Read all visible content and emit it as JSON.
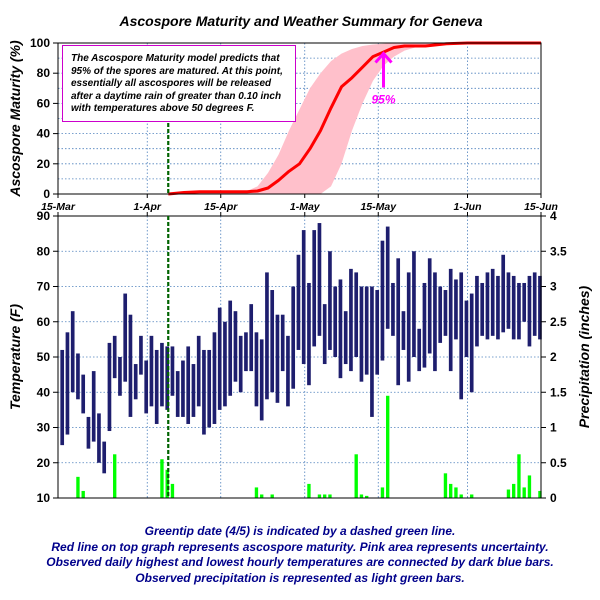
{
  "title": "Ascospore Maturity and Weather Summary for Geneva",
  "colors": {
    "maturity_line": "#ff0000",
    "uncertainty_band": "#ffc0cb",
    "temperature_bars": "#1e1e6e",
    "precipitation_bars": "#00ff00",
    "greentip_line": "#006400",
    "grid": "#4f81bd",
    "annotation": "#ff00ff",
    "caption_text": "#00008b"
  },
  "note_text": "The Ascospore Maturity model predicts that 95% of the spores are matured. At this point, essentially all ascospores will be released after a daytime rain of greater than 0.10 inch with temperatures above 50 degrees F.",
  "captions": [
    "Greentip date (4/5) is indicated by a dashed green line.",
    "Red line on top graph represents ascospore maturity. Pink area represents uncertainty.",
    "Observed daily highest and lowest hourly temperatures are connected by dark blue bars.",
    "Observed precipitation is represented as light green bars."
  ],
  "chart_data": [
    {
      "type": "line",
      "ylabel": "Ascospore Maturity (%)",
      "ylim": [
        0,
        100
      ],
      "yticks": [
        0,
        20,
        40,
        60,
        80,
        100
      ],
      "x_range_days": [
        0,
        92
      ],
      "x_tick_labels": [
        "15-Mar",
        "1-Apr",
        "15-Apr",
        "1-May",
        "15-May",
        "1-Jun",
        "15-Jun"
      ],
      "x_tick_days": [
        0,
        17,
        31,
        47,
        61,
        78,
        92
      ],
      "grid": true,
      "greentip_day": 21,
      "greentip_label": "4/5",
      "annotation": {
        "text": "95%",
        "day": 62,
        "value": 95
      },
      "series": [
        {
          "x_days": [
            21,
            24,
            27,
            30,
            33,
            36,
            38,
            40,
            42,
            44,
            46,
            48,
            50,
            52,
            54,
            56,
            58,
            60,
            62,
            64,
            66,
            70,
            74,
            78,
            92
          ],
          "values": [
            0,
            1,
            1.5,
            1.5,
            1.5,
            1.5,
            2,
            4,
            9,
            15,
            20,
            30,
            42,
            57,
            71,
            77,
            84,
            91,
            94,
            97,
            98,
            98,
            99.5,
            100,
            100
          ]
        }
      ],
      "uncertainty_band": {
        "x_days": [
          21,
          36,
          38,
          40,
          42,
          44,
          46,
          48,
          50,
          52,
          54,
          56,
          58,
          60,
          62,
          64,
          66,
          68,
          70,
          74,
          78,
          92
        ],
        "upper": [
          0,
          2,
          5,
          14,
          26,
          42,
          56,
          70,
          80,
          88,
          93,
          96,
          98,
          99,
          99.5,
          100,
          100,
          100,
          100,
          100,
          100,
          100
        ],
        "lower": [
          0,
          0,
          0,
          0,
          0,
          0,
          0,
          0,
          0,
          5,
          20,
          42,
          60,
          75,
          85,
          91,
          95,
          97,
          98,
          99.5,
          100,
          100
        ]
      }
    },
    {
      "type": "bar",
      "ylabel": "Temperature (F)",
      "ylim": [
        10,
        90
      ],
      "yticks": [
        10,
        20,
        30,
        40,
        50,
        60,
        70,
        80,
        90
      ],
      "y2label": "Precipitation (inches)",
      "y2lim": [
        0,
        4
      ],
      "y2ticks": [
        "0",
        "0.5",
        "1",
        "1.5",
        "2",
        "2.5",
        "3",
        "3.5",
        "4"
      ],
      "x_range_days": [
        0,
        92
      ],
      "first_bar_day": 0.8,
      "grid": true,
      "greentip_day": 21,
      "temperature_low": [
        25,
        28,
        40,
        38,
        34,
        24,
        26,
        20,
        17,
        29,
        44,
        39,
        43,
        33,
        38,
        45,
        34,
        36,
        31,
        36,
        35,
        39,
        33,
        33,
        31,
        33,
        36,
        28,
        30,
        31,
        35,
        36,
        39,
        43,
        40,
        46,
        46,
        36,
        32,
        38,
        40,
        37,
        46,
        36,
        41,
        52,
        48,
        42,
        53,
        56,
        48,
        52,
        50,
        44,
        48,
        46,
        50,
        43,
        45,
        33,
        45,
        49,
        58,
        56,
        42,
        52,
        43,
        50,
        46,
        47,
        51,
        46,
        54,
        56,
        46,
        55,
        38,
        50,
        40,
        53,
        56,
        55,
        56,
        55,
        57,
        58,
        55,
        55,
        60,
        53,
        56,
        55
      ],
      "temperature_high": [
        52,
        57,
        63,
        51,
        45,
        33,
        46,
        34,
        26,
        54,
        56,
        50,
        68,
        62,
        48,
        56,
        49,
        56,
        52,
        54,
        53,
        53,
        46,
        49,
        53,
        48,
        56,
        52,
        52,
        57,
        64,
        60,
        66,
        63,
        56,
        57,
        65,
        57,
        55,
        74,
        69,
        62,
        62,
        56,
        70,
        79,
        86,
        71,
        86,
        88,
        65,
        80,
        70,
        72,
        63,
        75,
        74,
        70,
        70,
        70,
        69,
        83,
        87,
        71,
        78,
        63,
        74,
        80,
        58,
        71,
        78,
        74,
        70,
        69,
        75,
        72,
        74,
        66,
        68,
        73,
        71,
        74,
        75,
        73,
        79,
        74,
        73,
        71,
        71,
        73,
        74,
        73
      ],
      "precipitation": [
        0,
        0,
        0,
        0.3,
        0.1,
        0,
        0,
        0,
        0,
        0,
        0.62,
        0,
        0,
        0,
        0,
        0,
        0,
        0,
        0,
        0.55,
        0.4,
        0.2,
        0,
        0,
        0,
        0,
        0,
        0,
        0,
        0,
        0,
        0,
        0,
        0,
        0,
        0,
        0,
        0.15,
        0.05,
        0,
        0.05,
        0,
        0,
        0,
        0,
        0,
        0,
        0.2,
        0,
        0.05,
        0.05,
        0.05,
        0,
        0,
        0,
        0,
        0.62,
        0.05,
        0.03,
        0,
        0,
        0.15,
        1.45,
        0,
        0,
        0,
        0,
        0,
        0,
        0,
        0,
        0,
        0,
        0.35,
        0.2,
        0.15,
        0.05,
        0,
        0.05,
        0,
        0,
        0,
        0,
        0,
        0,
        0.12,
        0.2,
        0.62,
        0.15,
        0.32,
        0,
        0.1
      ]
    }
  ]
}
